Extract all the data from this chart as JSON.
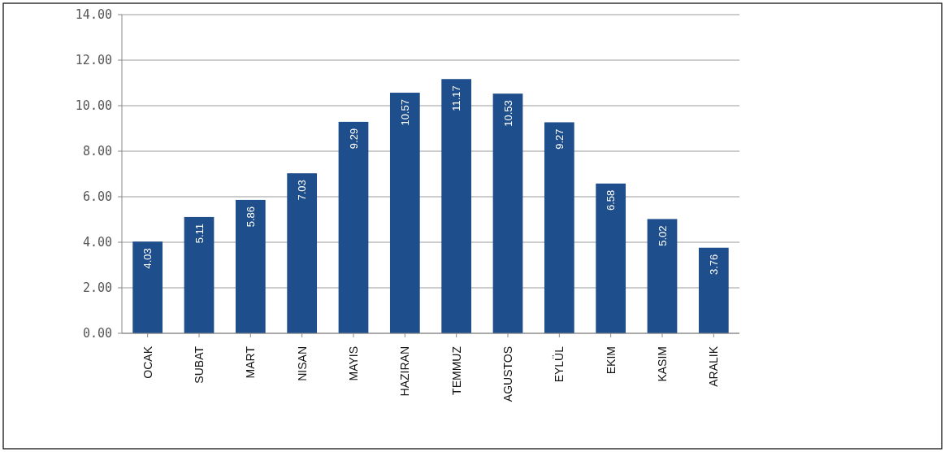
{
  "chart_data": {
    "type": "bar",
    "categories": [
      "OCAK",
      "SUBAT",
      "MART",
      "NISAN",
      "MAYIS",
      "HAZIRAN",
      "TEMMUZ",
      "AGUSTOS",
      "EYLÜL",
      "EKIM",
      "KASIM",
      "ARALIK"
    ],
    "values": [
      4.03,
      5.11,
      5.86,
      7.03,
      9.29,
      10.57,
      11.17,
      10.53,
      9.27,
      6.58,
      5.02,
      3.76
    ],
    "color": "#1f4e8c",
    "ylim": [
      0,
      14
    ],
    "yticks": [
      {
        "value": 0,
        "label": "0.00"
      },
      {
        "value": 2,
        "label": "2.00"
      },
      {
        "value": 4,
        "label": "4.00"
      },
      {
        "value": 6,
        "label": "6.00"
      },
      {
        "value": 8,
        "label": "8.00"
      },
      {
        "value": 10,
        "label": "10.00"
      },
      {
        "value": 12,
        "label": "12.00"
      },
      {
        "value": 14,
        "label": "14.00"
      }
    ],
    "grid": true,
    "data_labels": true
  }
}
